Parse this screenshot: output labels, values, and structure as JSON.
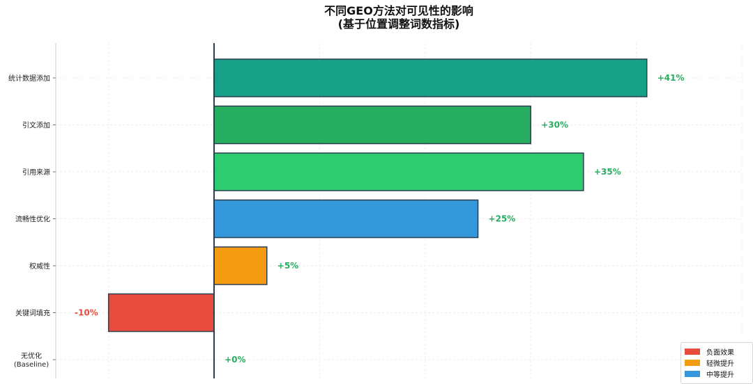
{
  "title_line1": "不同GEO方法对可见性的影响",
  "title_line2": "(基于位置调整词数指标)",
  "chart_data": {
    "type": "bar",
    "orientation": "horizontal",
    "categories": [
      "统计数据添加",
      "引文添加",
      "引用来源",
      "流畅性优化",
      "权威性",
      "关键词填充",
      "无优化\n(Baseline)"
    ],
    "values": [
      41,
      30,
      35,
      25,
      5,
      -10,
      0
    ],
    "labels": [
      "+41%",
      "+30%",
      "+35%",
      "+25%",
      "+5%",
      "-10%",
      "+0%"
    ],
    "bar_colors": [
      "#16a085",
      "#27ae60",
      "#2ecc71",
      "#3498db",
      "#f39c12",
      "#e74c3c",
      "#16a085"
    ],
    "label_colors": {
      "positive": "#27ae60",
      "negative": "#e74c3c"
    },
    "xlim": [
      -15,
      50
    ],
    "grid": true,
    "legend_position": "bottom-right",
    "legend": [
      {
        "label": "负面效果",
        "color": "#e74c3c"
      },
      {
        "label": "轻微提升",
        "color": "#f39c12"
      },
      {
        "label": "中等提升",
        "color": "#3498db"
      }
    ]
  }
}
